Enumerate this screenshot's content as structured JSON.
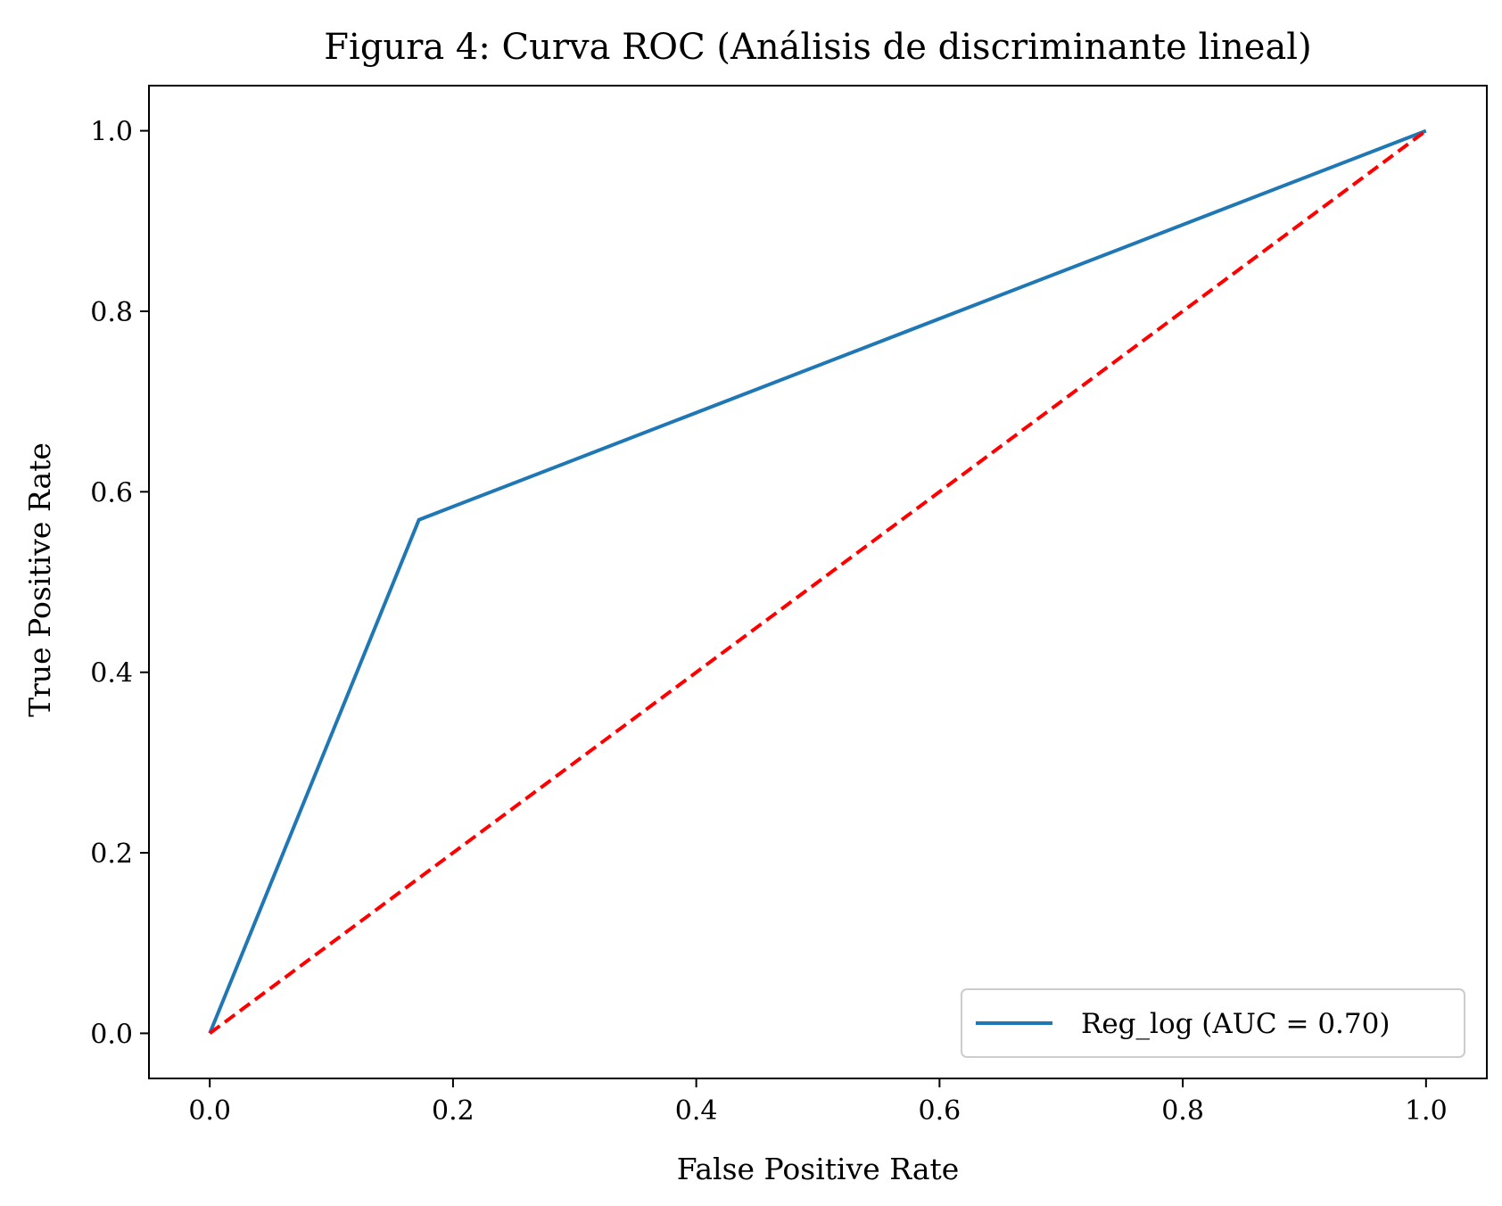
{
  "chart_data": {
    "type": "line",
    "title": "Figura 4: Curva ROC (Análisis de discriminante lineal)",
    "xlabel": "False Positive Rate",
    "ylabel": "True Positive Rate",
    "xlim": [
      -0.05,
      1.05
    ],
    "ylim": [
      -0.05,
      1.05
    ],
    "xticks": [
      0.0,
      0.2,
      0.4,
      0.6,
      0.8,
      1.0
    ],
    "yticks": [
      0.0,
      0.2,
      0.4,
      0.6,
      0.8,
      1.0
    ],
    "xtick_labels": [
      "0.0",
      "0.2",
      "0.4",
      "0.6",
      "0.8",
      "1.0"
    ],
    "ytick_labels": [
      "0.0",
      "0.2",
      "0.4",
      "0.6",
      "0.8",
      "1.0"
    ],
    "grid": false,
    "legend_position": "lower-right",
    "series": [
      {
        "name": "Reg_log (AUC = 0.70)",
        "x": [
          0.0,
          0.172,
          1.0
        ],
        "y": [
          0.0,
          0.569,
          1.0
        ],
        "color": "#1f77b4",
        "style": "solid"
      },
      {
        "x": [
          0.0,
          1.0
        ],
        "y": [
          0.0,
          1.0
        ],
        "color": "#ff0000",
        "style": "dashed"
      }
    ]
  }
}
